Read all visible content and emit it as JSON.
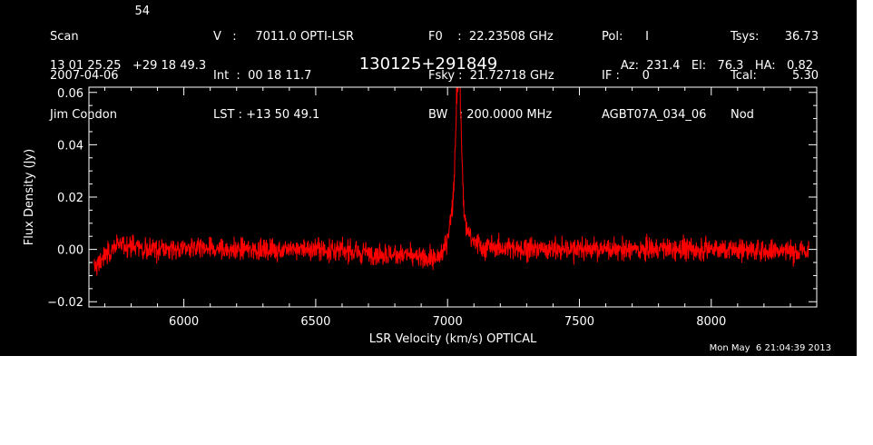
{
  "header": {
    "col1": [
      "Scan",
      "2007-04-06",
      "Jim Condon"
    ],
    "scan_number": "54",
    "col2": [
      "V   :     7011.0 OPTI-LSR",
      "Int  :  00 18 11.7",
      "LST : +13 50 49.1"
    ],
    "col3": [
      "F0    :  22.23508 GHz",
      "Fsky :  21.72718 GHz",
      "BW   : 200.0000 MHz"
    ],
    "col4": [
      "Pol:      I",
      "IF :      0",
      "AGBT07A_034_06"
    ],
    "col5_labels": [
      "Tsys:",
      "Tcal:",
      "Nod"
    ],
    "col5_values": [
      "36.73",
      "5.30",
      ""
    ],
    "coords": "13 01 25.25   +29 18 49.3",
    "source": "130125+291849",
    "azelha": "Az:  231.4   El:   76.3   HA:   0.82"
  },
  "timestamp": "Mon May  6 21:04:39 2013",
  "colors": {
    "background": "#000000",
    "axes": "#ffffff",
    "trace": "#ff0000"
  },
  "chart_data": {
    "type": "line",
    "title": "130125+291849",
    "xlabel": "LSR Velocity (km/s) OPTICAL",
    "ylabel": "Flux Density (Jy)",
    "xlim": [
      5640,
      8400
    ],
    "ylim": [
      -0.022,
      0.062
    ],
    "x_ticks": [
      6000,
      6500,
      7000,
      7500,
      8000
    ],
    "y_ticks": [
      -0.02,
      0.0,
      0.02,
      0.04,
      0.06
    ],
    "y_tick_labels": [
      "−0.02",
      "0.00",
      "0.02",
      "0.04",
      "0.06"
    ],
    "grid": false,
    "series": [
      {
        "color": "#ff0000",
        "noise_rms": 0.003,
        "velocity_range": [
          5660,
          8370
        ],
        "baseline_points": [
          [
            5660,
            -0.008
          ],
          [
            5700,
            -0.002
          ],
          [
            5750,
            0.002
          ],
          [
            5900,
            0.0
          ],
          [
            6200,
            0.0
          ],
          [
            6500,
            0.0
          ],
          [
            6800,
            -0.002
          ],
          [
            6950,
            -0.004
          ],
          [
            7000,
            -0.002
          ],
          [
            7100,
            0.001
          ],
          [
            7400,
            0.0
          ],
          [
            7800,
            0.0
          ],
          [
            8100,
            0.0
          ],
          [
            8370,
            -0.001
          ]
        ],
        "line_features": [
          {
            "center": 7042,
            "peak": 0.055,
            "width": 9
          },
          {
            "center": 7042,
            "peak": 0.012,
            "width": 30
          },
          {
            "center": 7030,
            "peak": 0.01,
            "width": 18
          }
        ]
      }
    ]
  }
}
